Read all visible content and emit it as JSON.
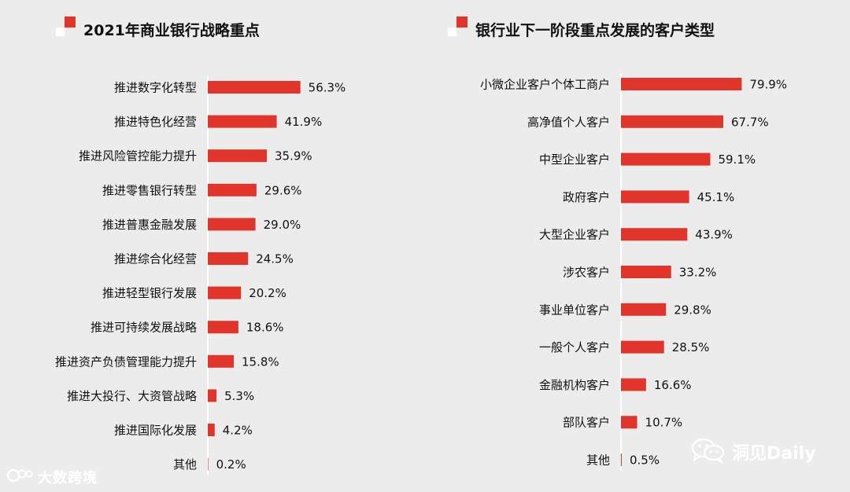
{
  "colors": {
    "bar": "#e1342a",
    "accent": "#e1342a",
    "background": "#ececec"
  },
  "watermarks": {
    "left": {
      "text": "大数跨境",
      "icon": "logo-icon"
    },
    "right": {
      "text": "洞见Daily",
      "icon": "wechat-icon"
    }
  },
  "chart_data": [
    {
      "type": "bar",
      "orientation": "horizontal",
      "title": "2021年商业银行战略重点",
      "categories": [
        "推进数字化转型",
        "推进特色化经营",
        "推进风险管控能力提升",
        "推进零售银行转型",
        "推进普惠金融发展",
        "推进综合化经营",
        "推进轻型银行发展",
        "推进可持续发展战略",
        "推进资产负债管理能力提升",
        "推进大投行、大资管战略",
        "推进国际化发展",
        "其他"
      ],
      "values": [
        56.3,
        41.9,
        35.9,
        29.6,
        29.0,
        24.5,
        20.2,
        18.6,
        15.8,
        5.3,
        4.2,
        0.2
      ],
      "labels": [
        "56.3%",
        "41.9%",
        "35.9%",
        "29.6%",
        "29.0%",
        "24.5%",
        "20.2%",
        "18.6%",
        "15.8%",
        "5.3%",
        "4.2%",
        "0.2%"
      ],
      "unit": "%",
      "grid": false
    },
    {
      "type": "bar",
      "orientation": "horizontal",
      "title": "银行业下一阶段重点发展的客户类型",
      "categories": [
        "小微企业客户个体工商户",
        "高净值个人客户",
        "中型企业客户",
        "政府客户",
        "大型企业客户",
        "涉农客户",
        "事业单位客户",
        "一般个人客户",
        "金融机构客户",
        "部队客户",
        "其他"
      ],
      "values": [
        79.9,
        67.7,
        59.1,
        45.1,
        43.9,
        33.2,
        29.8,
        28.5,
        16.6,
        10.7,
        0.5
      ],
      "labels": [
        "79.9%",
        "67.7%",
        "59.1%",
        "45.1%",
        "43.9%",
        "33.2%",
        "29.8%",
        "28.5%",
        "16.6%",
        "10.7%",
        "0.5%"
      ],
      "unit": "%",
      "grid": false
    }
  ]
}
